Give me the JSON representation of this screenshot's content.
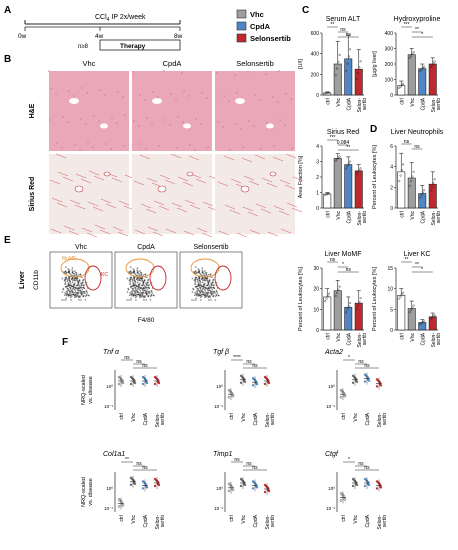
{
  "panel_letters": [
    "A",
    "B",
    "C",
    "D",
    "E",
    "F"
  ],
  "timeline": {
    "treatment_label": "CCl",
    "treatment_sub": "4",
    "treatment_rest": " IP 2x/week",
    "ticks": [
      "0w",
      "4w",
      "8w"
    ],
    "n_label": "n≥8",
    "therapy_label": "Therapy"
  },
  "legend": [
    {
      "label": "Vhc",
      "color": "#9e9e9e"
    },
    {
      "label": "CpdA",
      "color": "#4f86c6"
    },
    {
      "label": "Selonsertib",
      "color": "#c0282d"
    }
  ],
  "histology": {
    "columns": [
      "Vhc",
      "CpdA",
      "Selonsertib"
    ],
    "rows": [
      "H&E",
      "Sirius Red"
    ],
    "he_color": "#e9a7b8",
    "sr_color": "#f3e9e6"
  },
  "flow": {
    "columns": [
      "Vhc",
      "CpdA",
      "Selonsertib"
    ],
    "row_label": "Liver",
    "ylabel": "CD11b",
    "xlabel": "F4/80",
    "gate1": "MoMF",
    "gate2": "KC"
  },
  "groups": [
    "ctrl",
    "Vhc",
    "CpdA",
    "Selon-\nsertib"
  ],
  "bar_colors": [
    "#ffffff",
    "#9e9e9e",
    "#4f86c6",
    "#c0282d"
  ],
  "chart_data": [
    {
      "type": "bar",
      "title": "Serum ALT",
      "ylabel": "[U/l]",
      "ylim": [
        0,
        600
      ],
      "yticks": [
        "0",
        "200",
        "400",
        "600"
      ],
      "categories": [
        "ctrl",
        "Vhc",
        "CpdA",
        "Selon-sertib"
      ],
      "values": [
        20,
        300,
        350,
        250
      ],
      "errors": [
        10,
        220,
        230,
        190
      ],
      "sig": [
        "**",
        "ns",
        "ns"
      ]
    },
    {
      "type": "bar",
      "title": "Hydroxyproline",
      "ylabel": "[µg/g liver]",
      "ylim": [
        0,
        400
      ],
      "yticks": [
        "0",
        "100",
        "200",
        "300",
        "400"
      ],
      "categories": [
        "ctrl",
        "Vhc",
        "CpdA",
        "Selon-sertib"
      ],
      "values": [
        60,
        260,
        170,
        200
      ],
      "errors": [
        30,
        40,
        30,
        40
      ],
      "sig": [
        "***",
        "**",
        "*"
      ]
    },
    {
      "type": "bar",
      "title": "Sirius Red",
      "ylabel": "Area Fraction [%]",
      "ylim": [
        0,
        4
      ],
      "yticks": [
        "0",
        "1",
        "2",
        "3",
        "4"
      ],
      "categories": [
        "ctrl",
        "Vhc",
        "CpdA",
        "Selon-sertib"
      ],
      "values": [
        0.9,
        3.2,
        2.8,
        2.4
      ],
      "errors": [
        0.1,
        0.3,
        0.5,
        0.4
      ],
      "sig": [
        "***",
        "0.084",
        "**"
      ]
    },
    {
      "type": "bar",
      "title": "Liver Neutrophils",
      "ylabel": "Percent of Leukocytes [%]",
      "ylim": [
        0,
        6
      ],
      "yticks": [
        "0",
        "2",
        "4",
        "6"
      ],
      "categories": [
        "ctrl",
        "Vhc",
        "CpdA",
        "Selon-sertib"
      ],
      "values": [
        3.5,
        2.9,
        1.4,
        2.3
      ],
      "errors": [
        1.8,
        1.5,
        0.8,
        1.2
      ],
      "sig": [
        "ns",
        "ns"
      ]
    },
    {
      "type": "bar",
      "title": "Liver MoMF",
      "ylabel": "Percent of Leukocytes [%]",
      "ylim": [
        0,
        30
      ],
      "yticks": [
        "0",
        "10",
        "20",
        "30"
      ],
      "categories": [
        "ctrl",
        "Vhc",
        "CpdA",
        "Selon-sertib"
      ],
      "values": [
        16,
        19,
        11,
        13
      ],
      "errors": [
        4,
        5,
        5,
        6
      ],
      "sig": [
        "ns",
        "*",
        "ns"
      ]
    },
    {
      "type": "bar",
      "title": "Liver KC",
      "ylabel": "Percent of Leukocytes [%]",
      "ylim": [
        0,
        15
      ],
      "yticks": [
        "0",
        "5",
        "10",
        "15"
      ],
      "categories": [
        "ctrl",
        "Vhc",
        "CpdA",
        "Selon-sertib"
      ],
      "values": [
        8.4,
        5.2,
        1.8,
        3.2
      ],
      "errors": [
        1.6,
        1.8,
        0.7,
        0.9
      ],
      "sig": [
        "**",
        "**",
        "*"
      ]
    },
    {
      "type": "scatter",
      "title": "Tnf α",
      "ylabel": "NRQ-scaled vs. disease",
      "sig": [
        "ns",
        "ns",
        "ns"
      ],
      "centers": [
        1.0,
        1.0,
        1.0,
        1.0
      ]
    },
    {
      "type": "scatter",
      "title": "Tgf β",
      "ylabel": "",
      "sig": [
        "****",
        "ns",
        "ns"
      ],
      "centers": [
        0.45,
        1.05,
        0.95,
        1.0
      ]
    },
    {
      "type": "scatter",
      "title": "Acta2",
      "ylabel": "",
      "sig": [
        "*",
        "ns",
        "ns"
      ],
      "centers": [
        0.45,
        1.05,
        1.1,
        0.9
      ]
    },
    {
      "type": "scatter",
      "title": "Col1a1",
      "ylabel": "NRQ-scaled vs. disease",
      "sig": [
        "**",
        "ns",
        "ns"
      ],
      "centers": [
        0.15,
        1.05,
        0.9,
        1.0
      ]
    },
    {
      "type": "scatter",
      "title": "Timp1",
      "ylabel": "",
      "sig": [
        "ns",
        "ns",
        "ns"
      ],
      "centers": [
        0.8,
        1.0,
        0.9,
        0.75
      ]
    },
    {
      "type": "scatter",
      "title": "Ctgf",
      "ylabel": "",
      "sig": [
        "*",
        "ns",
        "ns"
      ],
      "centers": [
        0.4,
        1.0,
        1.0,
        0.9
      ]
    }
  ],
  "axis_labels": {
    "log_tick_top": "10⁰",
    "log_tick_bottom": "10⁻¹"
  }
}
